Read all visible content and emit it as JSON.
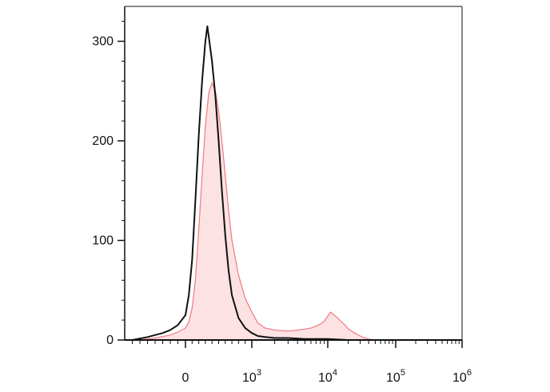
{
  "chart_data": {
    "type": "area",
    "title": "",
    "xlabel": "",
    "ylabel": "",
    "x_scale": "logicle",
    "x_domain": [
      -800,
      1000000
    ],
    "ylim": [
      0,
      335
    ],
    "grid": false,
    "legend": "none",
    "y_ticks": [
      {
        "value": 0,
        "label": "0"
      },
      {
        "value": 100,
        "label": "100"
      },
      {
        "value": 200,
        "label": "200"
      },
      {
        "value": 300,
        "label": "300"
      }
    ],
    "x_ticks": [
      {
        "value": 0,
        "base": "0",
        "exp": ""
      },
      {
        "value": 1000,
        "base": "10",
        "exp": "3"
      },
      {
        "value": 10000,
        "base": "10",
        "exp": "4"
      },
      {
        "value": 100000,
        "base": "10",
        "exp": "5"
      },
      {
        "value": 1000000,
        "base": "10",
        "exp": "6"
      }
    ],
    "series": [
      {
        "role": "sample",
        "style": "filled",
        "color": "#f07a82",
        "fill": "#fde2e3",
        "x": [
          -600,
          -400,
          -200,
          -100,
          0,
          50,
          100,
          150,
          200,
          250,
          300,
          350,
          400,
          450,
          500,
          550,
          600,
          650,
          700,
          800,
          900,
          1000,
          1200,
          1500,
          2000,
          3000,
          4000,
          5000,
          6000,
          7000,
          8000,
          9000,
          10000,
          11000,
          12000,
          14000,
          16000,
          18000,
          20000,
          25000,
          30000,
          35000,
          40000,
          50000,
          60000,
          80000,
          100000
        ],
        "y": [
          0,
          2,
          5,
          8,
          12,
          18,
          32,
          60,
          110,
          165,
          215,
          248,
          258,
          250,
          230,
          200,
          165,
          130,
          100,
          65,
          42,
          28,
          17,
          12,
          10,
          9,
          10,
          11,
          12,
          14,
          16,
          19,
          24,
          28,
          26,
          22,
          18,
          15,
          11,
          7,
          4,
          2,
          1,
          0,
          0,
          0,
          0
        ]
      },
      {
        "role": "control",
        "style": "line",
        "color": "#111111",
        "x": [
          -700,
          -500,
          -300,
          -200,
          -100,
          0,
          50,
          100,
          150,
          200,
          250,
          300,
          330,
          360,
          400,
          450,
          500,
          550,
          600,
          650,
          700,
          800,
          900,
          1000,
          1200,
          1500,
          2000,
          3000,
          5000,
          10000,
          20000,
          30000,
          50000,
          100000
        ],
        "y": [
          0,
          3,
          7,
          10,
          15,
          25,
          45,
          80,
          140,
          205,
          260,
          300,
          315,
          300,
          280,
          245,
          200,
          150,
          105,
          70,
          45,
          22,
          12,
          7,
          4,
          3,
          2,
          2,
          1,
          1,
          0,
          0,
          0,
          0
        ]
      }
    ]
  }
}
